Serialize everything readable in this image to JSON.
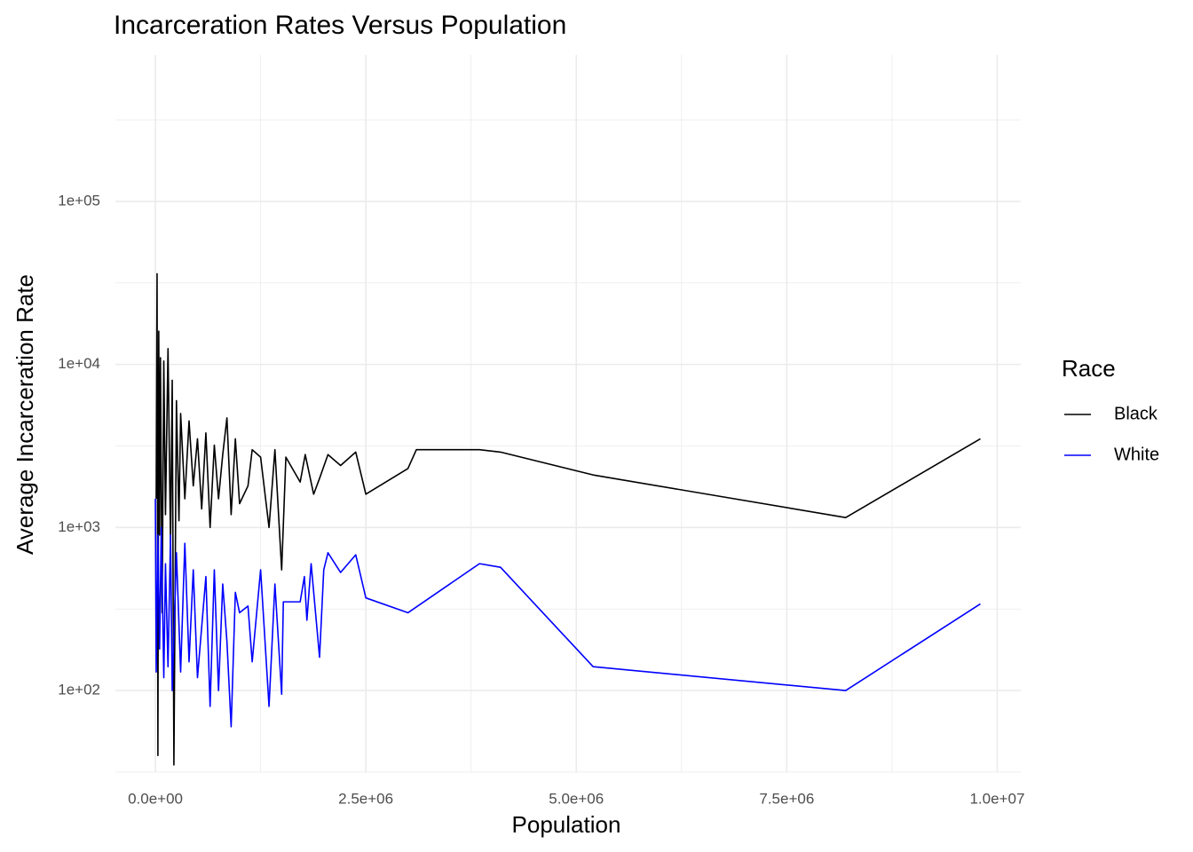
{
  "chart_data": {
    "type": "line",
    "title": "Incarceration Rates Versus Population",
    "x_label": "Population",
    "y_label": "Average Incarceration Rate",
    "y_scale": "log",
    "grid": true,
    "legend_title": "Race",
    "legend_position": "right",
    "xlim": [
      -475000,
      10280000
    ],
    "ylim": [
      31.6,
      790000
    ],
    "xticks": [
      {
        "value": 0,
        "label": "0.0e+00"
      },
      {
        "value": 2500000,
        "label": "2.5e+06"
      },
      {
        "value": 5000000,
        "label": "5.0e+06"
      },
      {
        "value": 7500000,
        "label": "7.5e+06"
      },
      {
        "value": 10000000,
        "label": "1.0e+07"
      }
    ],
    "yticks": [
      {
        "value": 100,
        "label": "1e+02"
      },
      {
        "value": 1000,
        "label": "1e+03"
      },
      {
        "value": 10000,
        "label": "1e+04"
      },
      {
        "value": 100000,
        "label": "1e+05"
      }
    ],
    "series": [
      {
        "name": "Black",
        "color": "#000000",
        "x": [
          10000,
          20000,
          30000,
          40000,
          50000,
          60000,
          80000,
          100000,
          120000,
          150000,
          180000,
          200000,
          220000,
          250000,
          280000,
          300000,
          350000,
          400000,
          450000,
          500000,
          550000,
          600000,
          650000,
          700000,
          750000,
          800000,
          850000,
          900000,
          950000,
          1000000,
          1100000,
          1150000,
          1250000,
          1350000,
          1420000,
          1500000,
          1550000,
          1720000,
          1780000,
          1880000,
          1950000,
          2050000,
          2200000,
          2380000,
          2500000,
          3000000,
          3100000,
          3850000,
          4100000,
          5200000,
          8200000,
          9800000
        ],
        "values": [
          1500,
          36000,
          40,
          16000,
          900,
          11000,
          300,
          10500,
          1200,
          12500,
          800,
          8000,
          35,
          6000,
          1100,
          5000,
          1500,
          4500,
          1800,
          3500,
          1300,
          3800,
          1000,
          3200,
          1500,
          2800,
          4700,
          1200,
          3500,
          1400,
          1800,
          3000,
          2700,
          1000,
          3000,
          550,
          2700,
          1900,
          2800,
          1600,
          2000,
          2800,
          2400,
          2900,
          1600,
          2300,
          3000,
          3000,
          2900,
          2100,
          1150,
          3500
        ]
      },
      {
        "name": "White",
        "color": "#0000ff",
        "x": [
          0,
          10000,
          30000,
          50000,
          70000,
          100000,
          120000,
          150000,
          180000,
          200000,
          250000,
          300000,
          350000,
          400000,
          450000,
          500000,
          600000,
          650000,
          700000,
          750000,
          800000,
          850000,
          900000,
          950000,
          1000000,
          1100000,
          1150000,
          1250000,
          1350000,
          1420000,
          1500000,
          1520000,
          1720000,
          1770000,
          1800000,
          1850000,
          1950000,
          2000000,
          2050000,
          2200000,
          2380000,
          2500000,
          3000000,
          3850000,
          4100000,
          5200000,
          8200000,
          9800000
        ],
        "values": [
          1500,
          130,
          900,
          180,
          1000,
          120,
          600,
          140,
          900,
          100,
          700,
          130,
          800,
          150,
          550,
          120,
          500,
          80,
          550,
          100,
          450,
          200,
          60,
          400,
          300,
          330,
          150,
          550,
          80,
          450,
          95,
          350,
          350,
          500,
          270,
          600,
          160,
          550,
          700,
          530,
          680,
          370,
          300,
          600,
          570,
          140,
          100,
          340
        ]
      }
    ]
  }
}
